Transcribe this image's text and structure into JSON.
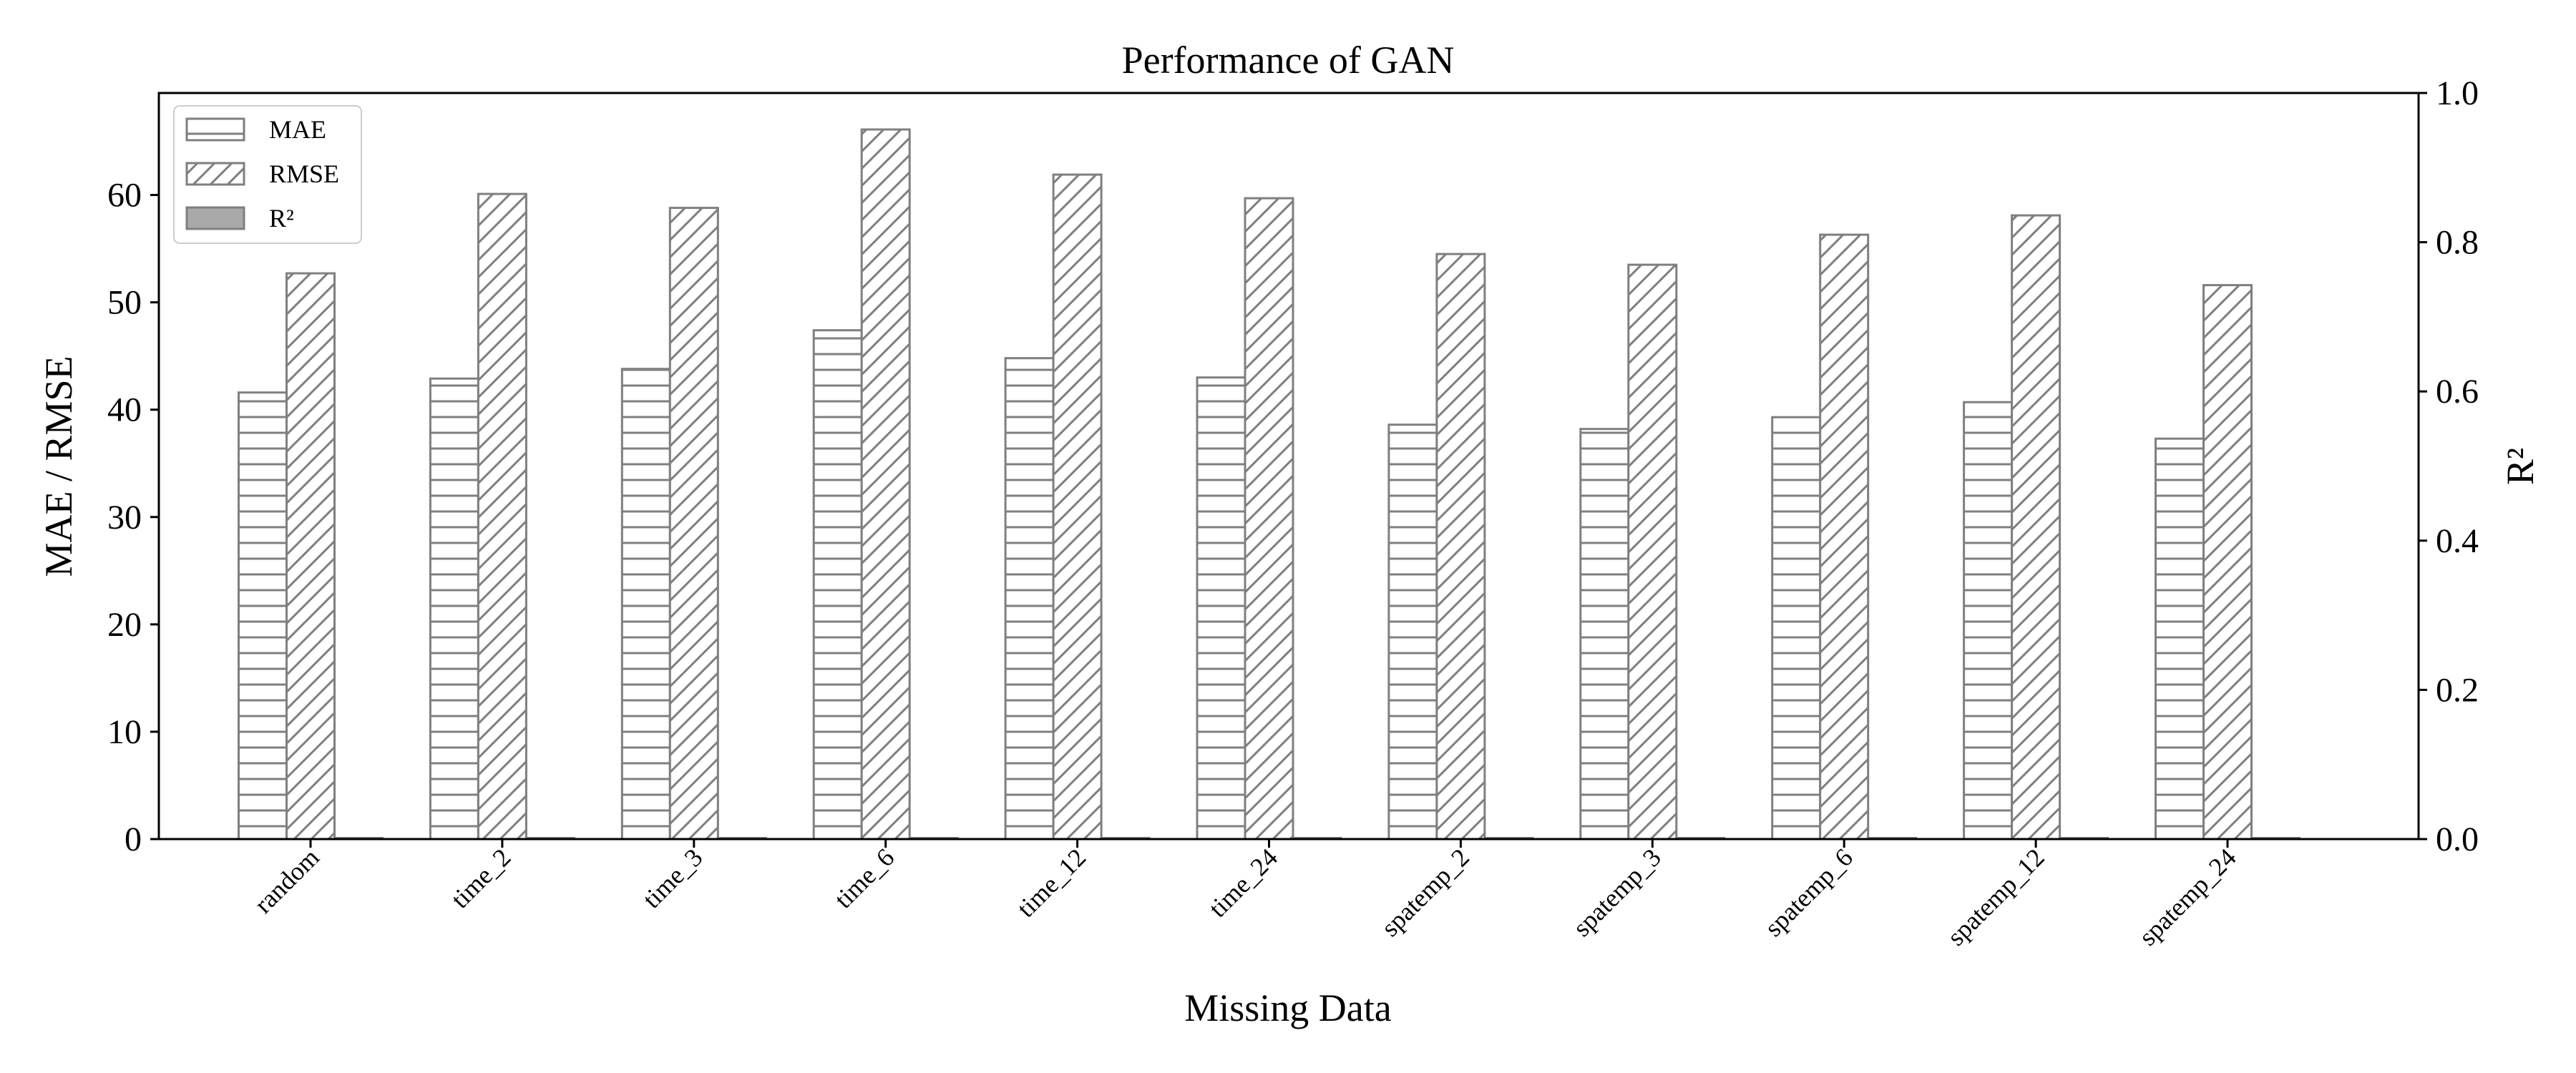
{
  "chart_data": {
    "type": "bar",
    "title": "Performance of GAN",
    "xlabel": "Missing Data",
    "ylabel": "MAE / RMSE",
    "ylabel_right": "R²",
    "categories": [
      "random",
      "time_2",
      "time_3",
      "time_6",
      "time_12",
      "time_24",
      "spatemp_2",
      "spatemp_3",
      "spatemp_6",
      "spatemp_12",
      "spatemp_24"
    ],
    "series": [
      {
        "name": "MAE",
        "axis": "left",
        "pattern": "horizontal-lines",
        "values": [
          41.6,
          42.9,
          43.8,
          47.4,
          44.8,
          43.0,
          38.6,
          38.2,
          39.3,
          40.7,
          37.3
        ]
      },
      {
        "name": "RMSE",
        "axis": "left",
        "pattern": "diagonal-hatch",
        "values": [
          52.7,
          60.1,
          58.8,
          66.1,
          61.9,
          59.7,
          54.5,
          53.5,
          56.3,
          58.1,
          51.6
        ]
      },
      {
        "name": "R²",
        "axis": "right",
        "pattern": "solid-gray",
        "values": [
          0.0,
          0.0,
          0.0,
          0.0,
          0.0,
          0.0,
          0.0,
          0.0,
          0.0,
          0.0,
          0.0
        ]
      }
    ],
    "ylim": [
      0,
      69.5
    ],
    "yticks": [
      0,
      10,
      20,
      30,
      40,
      50,
      60
    ],
    "ylim_right": [
      0,
      1.0
    ],
    "yticks_right": [
      "0.0",
      "0.2",
      "0.4",
      "0.6",
      "0.8",
      "1.0"
    ],
    "legend_position": "top-left",
    "grid": false,
    "colors": {
      "edge": "#7f7f7f",
      "r2_fill": "#a9a9a9"
    }
  }
}
